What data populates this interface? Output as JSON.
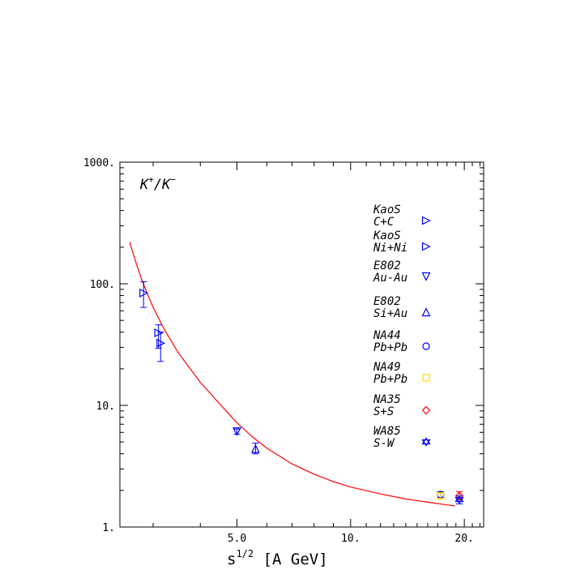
{
  "chart_data": {
    "type": "scatter",
    "panel_label": {
      "main": "K",
      "sup1": "+",
      "slash": "/K",
      "sup2": "−"
    },
    "xlabel": {
      "main": "s",
      "sup": "1/2",
      "rest": " [A GeV]"
    },
    "x_scale": "log",
    "y_scale": "log",
    "xlim": [
      2.45,
      22.5
    ],
    "ylim": [
      1,
      1000
    ],
    "x_ticks": [
      {
        "value": 5.0,
        "label": "5.0"
      },
      {
        "value": 10.0,
        "label": "10."
      },
      {
        "value": 20.0,
        "label": "20."
      }
    ],
    "y_ticks": [
      {
        "value": 1,
        "label": "1."
      },
      {
        "value": 10,
        "label": "10."
      },
      {
        "value": 100,
        "label": "100."
      },
      {
        "value": 1000,
        "label": "1000."
      }
    ],
    "grid": false,
    "colors": {
      "kaos": "#0000ff",
      "e802": "#0000ff",
      "na44": "#0000ff",
      "na49": "#ffd700",
      "na35": "#ff0000",
      "wa85": "#0000ff",
      "fit": "#ff0000"
    },
    "series": [
      {
        "key": "kaos_cc",
        "name_line1": "KaoS",
        "name_line2": "C+C",
        "marker": "triangle-right",
        "filled": false,
        "color": "#0000ff",
        "points": [
          {
            "x": 3.1,
            "y": 39.5,
            "err_low": 29.5,
            "err_high": 46.0
          }
        ]
      },
      {
        "key": "kaos_nini",
        "name_line1": "KaoS",
        "name_line2": "Ni+Ni",
        "marker": "triangle-right",
        "filled": false,
        "color": "#0000ff",
        "points": [
          {
            "x": 2.83,
            "y": 84.0,
            "err_low": 64.0,
            "err_high": 104.0
          },
          {
            "x": 3.14,
            "y": 32.5,
            "err_low": 23.0,
            "err_high": 40.0
          }
        ]
      },
      {
        "key": "e802_auau",
        "name_line1": "E802",
        "name_line2": "Au-Au",
        "marker": "triangle-down",
        "filled": false,
        "color": "#0000ff",
        "points": [
          {
            "x": 5.0,
            "y": 6.1,
            "err_low": 5.8,
            "err_high": 6.4
          }
        ]
      },
      {
        "key": "e802_siau",
        "name_line1": "E802",
        "name_line2": "Si+Au",
        "marker": "triangle-up",
        "filled": false,
        "color": "#0000ff",
        "points": [
          {
            "x": 5.6,
            "y": 4.4,
            "err_low": 4.0,
            "err_high": 4.9
          }
        ]
      },
      {
        "key": "na44_pbpb",
        "name_line1": "NA44",
        "name_line2": "Pb+Pb",
        "marker": "circle",
        "filled": false,
        "color": "#0000ff",
        "points": [
          {
            "x": 17.3,
            "y": 1.85,
            "err_low": 1.75,
            "err_high": 1.95
          }
        ]
      },
      {
        "key": "na49_pbpb",
        "name_line1": "NA49",
        "name_line2": "Pb+Pb",
        "marker": "square",
        "filled": false,
        "color": "#ffd700",
        "points": [
          {
            "x": 17.3,
            "y": 1.8,
            "err_low": 1.7,
            "err_high": 1.9
          }
        ]
      },
      {
        "key": "na35_ss",
        "name_line1": "NA35",
        "name_line2": "S+S",
        "marker": "diamond",
        "filled": false,
        "color": "#ff0000",
        "points": [
          {
            "x": 19.4,
            "y": 1.8,
            "err_low": 1.68,
            "err_high": 1.95
          }
        ]
      },
      {
        "key": "wa85_sw",
        "name_line1": "WA85",
        "name_line2": "S-W",
        "marker": "star",
        "filled": false,
        "color": "#0000ff",
        "points": [
          {
            "x": 19.4,
            "y": 1.68,
            "err_low": 1.55,
            "err_high": 1.8
          }
        ]
      }
    ],
    "fit_curve": {
      "color": "#ff0000",
      "points": [
        [
          2.6,
          220
        ],
        [
          2.7,
          150
        ],
        [
          2.8,
          108
        ],
        [
          2.9,
          82
        ],
        [
          3.0,
          64
        ],
        [
          3.2,
          43
        ],
        [
          3.5,
          27
        ],
        [
          4.0,
          15.5
        ],
        [
          4.5,
          10.3
        ],
        [
          5.0,
          7.2
        ],
        [
          5.5,
          5.5
        ],
        [
          6.0,
          4.45
        ],
        [
          7.0,
          3.3
        ],
        [
          8.0,
          2.72
        ],
        [
          9.0,
          2.36
        ],
        [
          10.0,
          2.13
        ],
        [
          12.0,
          1.87
        ],
        [
          14.0,
          1.7
        ],
        [
          16.0,
          1.6
        ],
        [
          18.0,
          1.52
        ],
        [
          18.9,
          1.49
        ]
      ]
    }
  }
}
